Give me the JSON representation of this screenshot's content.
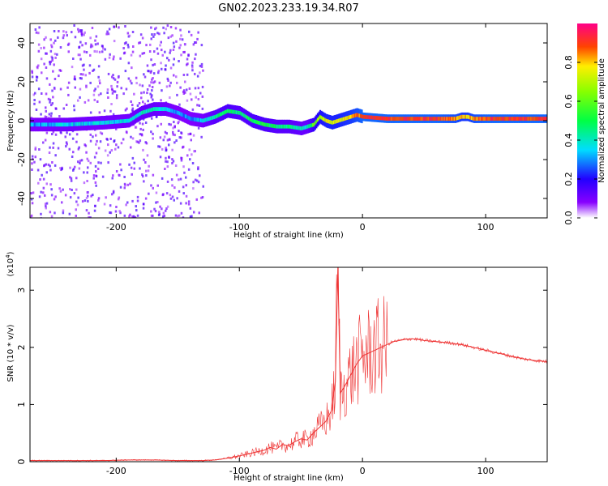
{
  "title": "GN02.2023.233.19.34.R07",
  "colors": {
    "snr_line": "#ee3333",
    "axis": "#000000"
  },
  "colorbar": {
    "label": "Normalized spectral amplitude",
    "ticks": [
      "0.0",
      "0.2",
      "0.4",
      "0.6",
      "0.8"
    ],
    "tick_values": [
      0.0,
      0.2,
      0.4,
      0.6,
      0.8
    ],
    "range": [
      0,
      1
    ],
    "colormap": "rainbow"
  },
  "chart_data": [
    {
      "type": "heatmap",
      "xlabel": "Height of straight line (km)",
      "ylabel": "Frequency (Hz)",
      "xlim": [
        -270,
        150
      ],
      "ylim": [
        -50,
        50
      ],
      "xticks": [
        -200,
        -100,
        0,
        100
      ],
      "xtick_labels": [
        "-200",
        "-100",
        "0",
        "100"
      ],
      "yticks": [
        -40,
        -20,
        0,
        20,
        40
      ],
      "ytick_labels": [
        "-40",
        "-20",
        "0",
        "20",
        "40"
      ],
      "ridge": {
        "x": [
          -270,
          -240,
          -210,
          -190,
          -180,
          -170,
          -160,
          -150,
          -140,
          -130,
          -120,
          -110,
          -100,
          -90,
          -80,
          -70,
          -60,
          -50,
          -45,
          -40,
          -35,
          -30,
          -25,
          -20,
          -10,
          -5,
          0,
          20,
          40,
          60,
          75,
          80,
          85,
          90,
          100,
          120,
          150
        ],
        "freq": [
          -2,
          -2,
          -1,
          0,
          4,
          6,
          6,
          4,
          1,
          0,
          2,
          5,
          4,
          0,
          -2,
          -3,
          -3,
          -4,
          -3,
          -2,
          2,
          0,
          -1,
          0,
          2,
          3,
          2,
          1,
          1,
          1,
          1,
          2,
          2,
          1,
          1,
          1,
          1
        ],
        "amplitude": [
          0.3,
          0.35,
          0.35,
          0.35,
          0.4,
          0.4,
          0.35,
          0.3,
          0.3,
          0.35,
          0.45,
          0.5,
          0.45,
          0.5,
          0.5,
          0.45,
          0.45,
          0.4,
          0.4,
          0.6,
          0.7,
          0.75,
          0.75,
          0.75,
          0.8,
          0.85,
          0.9,
          0.9,
          0.9,
          0.9,
          0.85,
          0.8,
          0.8,
          0.85,
          0.9,
          0.9,
          0.9
        ]
      }
    },
    {
      "type": "line",
      "xlabel": "Height of straight line (km)",
      "ylabel": "SNR (10 * v/v)",
      "scale_label": "(x10",
      "scale_exp": "4",
      "xlim": [
        -270,
        150
      ],
      "ylim": [
        0,
        3.4
      ],
      "xticks": [
        -200,
        -100,
        0,
        100
      ],
      "xtick_labels": [
        "-200",
        "-100",
        "0",
        "100"
      ],
      "yticks": [
        0,
        1,
        2,
        3
      ],
      "ytick_labels": [
        "0",
        "1",
        "2",
        "3"
      ],
      "series": [
        {
          "x": [
            -270,
            -250,
            -230,
            -210,
            -190,
            -170,
            -150,
            -130,
            -120,
            -110,
            -100,
            -90,
            -80,
            -75,
            -70,
            -65,
            -60,
            -55,
            -50,
            -45,
            -40,
            -35,
            -30,
            -25,
            -22,
            -20,
            -18,
            -15,
            -10,
            -5,
            0,
            5,
            10,
            15,
            20,
            25,
            30,
            35,
            40,
            45,
            50,
            60,
            70,
            80,
            90,
            100,
            110,
            120,
            130,
            140,
            150
          ],
          "y": [
            0.02,
            0.02,
            0.02,
            0.02,
            0.03,
            0.03,
            0.02,
            0.02,
            0.03,
            0.06,
            0.1,
            0.15,
            0.2,
            0.25,
            0.22,
            0.3,
            0.28,
            0.35,
            0.4,
            0.38,
            0.5,
            0.6,
            0.7,
            0.9,
            1.4,
            3.4,
            1.2,
            1.3,
            1.5,
            1.7,
            1.85,
            1.9,
            1.95,
            2.0,
            2.05,
            2.1,
            2.12,
            2.14,
            2.15,
            2.14,
            2.12,
            2.1,
            2.08,
            2.05,
            2.0,
            1.95,
            1.9,
            1.85,
            1.8,
            1.77,
            1.75
          ]
        }
      ]
    }
  ]
}
